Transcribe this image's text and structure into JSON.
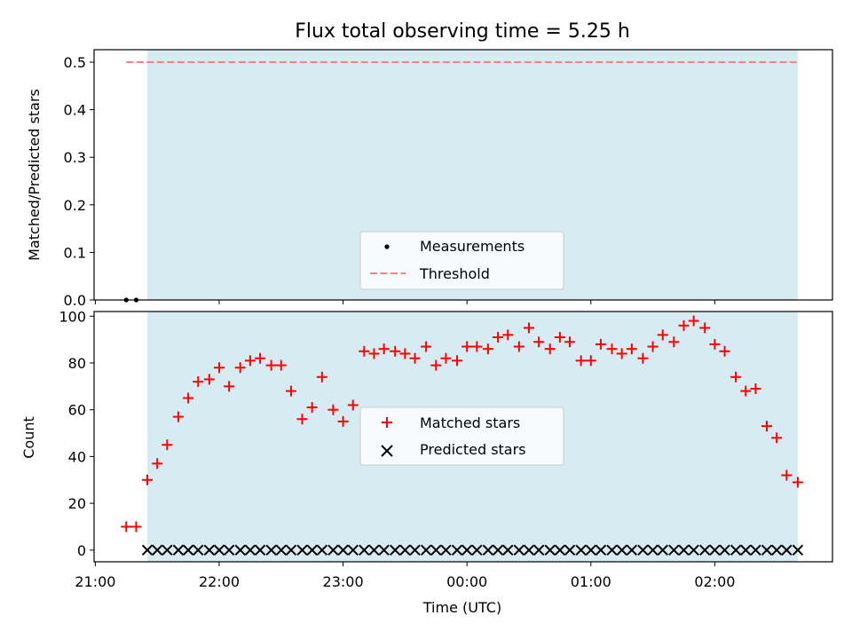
{
  "title": "Flux total observing time = 5.25 h",
  "xlabel": "Time (UTC)",
  "x_ticks": [
    "21:00",
    "22:00",
    "23:00",
    "00:00",
    "01:00",
    "02:00"
  ],
  "colors": {
    "span": "#add8e6",
    "matched": "#ff0000",
    "predicted": "#000000",
    "threshold": "#ff7f7f",
    "measurements": "#000000"
  },
  "chart_data": [
    {
      "type": "scatter",
      "ylabel": "Matched/Predicted stars",
      "ylim": [
        0,
        0.5
      ],
      "y_ticks": [
        "0.0",
        "0.1",
        "0.2",
        "0.3",
        "0.4",
        "0.5"
      ],
      "xlim_hours": [
        20.99,
        26.95
      ],
      "shaded_span_hours": [
        21.42,
        26.67
      ],
      "legend": {
        "placement": "lower center",
        "entries": [
          "Measurements",
          "Threshold"
        ]
      },
      "series": [
        {
          "name": "Measurements",
          "marker": "dot",
          "x_hours": [
            21.25,
            21.33
          ],
          "y": [
            0,
            0
          ]
        },
        {
          "name": "Threshold",
          "style": "dashed line",
          "x_hours": [
            21.25,
            26.67
          ],
          "y": [
            0.5,
            0.5
          ]
        }
      ]
    },
    {
      "type": "scatter",
      "ylabel": "Count",
      "ylim": [
        -5,
        102
      ],
      "y_ticks": [
        "0",
        "20",
        "40",
        "60",
        "80",
        "100"
      ],
      "legend": {
        "placement": "center",
        "entries": [
          "Matched stars",
          "Predicted stars"
        ]
      },
      "series": [
        {
          "name": "Matched stars",
          "marker": "+",
          "x_hours": [
            21.25,
            21.33,
            21.42,
            21.5,
            21.58,
            21.67,
            21.75,
            21.83,
            21.92,
            22.0,
            22.08,
            22.17,
            22.25,
            22.33,
            22.42,
            22.5,
            22.58,
            22.67,
            22.75,
            22.83,
            22.92,
            23.0,
            23.08,
            23.17,
            23.25,
            23.33,
            23.42,
            23.5,
            23.58,
            23.67,
            23.75,
            23.83,
            23.92,
            24.0,
            24.08,
            24.17,
            24.25,
            24.33,
            24.42,
            24.5,
            24.58,
            24.67,
            24.75,
            24.83,
            24.92,
            25.0,
            25.08,
            25.17,
            25.25,
            25.33,
            25.42,
            25.5,
            25.58,
            25.67,
            25.75,
            25.83,
            25.92,
            26.0,
            26.08,
            26.17,
            26.25,
            26.33,
            26.42,
            26.5,
            26.58,
            26.67
          ],
          "y": [
            10,
            10,
            30,
            37,
            45,
            57,
            65,
            72,
            73,
            78,
            70,
            78,
            81,
            82,
            79,
            79,
            68,
            56,
            61,
            74,
            60,
            55,
            62,
            85,
            84,
            86,
            85,
            84,
            82,
            87,
            79,
            82,
            81,
            87,
            87,
            86,
            91,
            92,
            87,
            95,
            89,
            86,
            91,
            89,
            81,
            81,
            88,
            86,
            84,
            86,
            82,
            87,
            92,
            89,
            96,
            98,
            95,
            88,
            85,
            74,
            68,
            69,
            53,
            48,
            32,
            29
          ]
        },
        {
          "name": "Predicted stars",
          "marker": "x",
          "x_hours": [
            21.42,
            21.5,
            21.58,
            21.67,
            21.75,
            21.83,
            21.92,
            22.0,
            22.08,
            22.17,
            22.25,
            22.33,
            22.42,
            22.5,
            22.58,
            22.67,
            22.75,
            22.83,
            22.92,
            23.0,
            23.08,
            23.17,
            23.25,
            23.33,
            23.42,
            23.5,
            23.58,
            23.67,
            23.75,
            23.83,
            23.92,
            24.0,
            24.08,
            24.17,
            24.25,
            24.33,
            24.42,
            24.5,
            24.58,
            24.67,
            24.75,
            24.83,
            24.92,
            25.0,
            25.08,
            25.17,
            25.25,
            25.33,
            25.42,
            25.5,
            25.58,
            25.67,
            25.75,
            25.83,
            25.92,
            26.0,
            26.08,
            26.17,
            26.25,
            26.33,
            26.42,
            26.5,
            26.58,
            26.67
          ],
          "y": [
            0,
            0,
            0,
            0,
            0,
            0,
            0,
            0,
            0,
            0,
            0,
            0,
            0,
            0,
            0,
            0,
            0,
            0,
            0,
            0,
            0,
            0,
            0,
            0,
            0,
            0,
            0,
            0,
            0,
            0,
            0,
            0,
            0,
            0,
            0,
            0,
            0,
            0,
            0,
            0,
            0,
            0,
            0,
            0,
            0,
            0,
            0,
            0,
            0,
            0,
            0,
            0,
            0,
            0,
            0,
            0,
            0,
            0,
            0,
            0,
            0,
            0,
            0,
            0
          ]
        }
      ]
    }
  ]
}
